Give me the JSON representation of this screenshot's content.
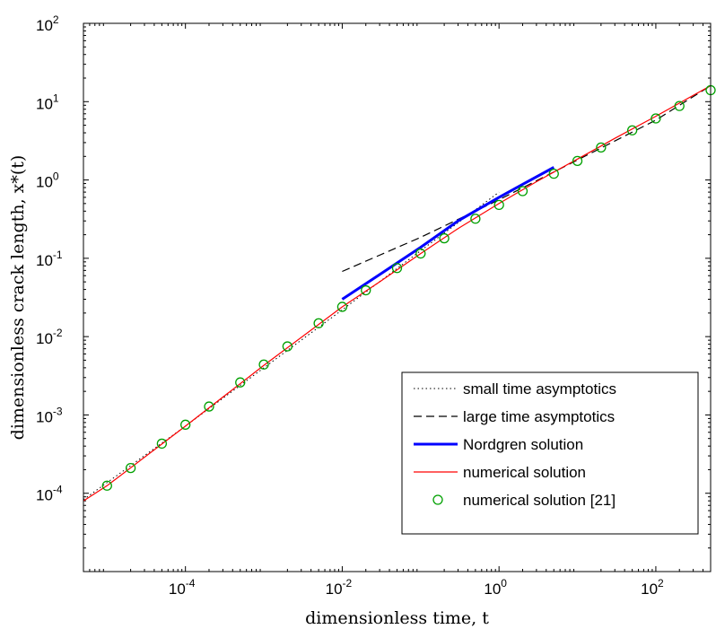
{
  "chart_data": {
    "type": "line",
    "xlabel": "dimensionless time, t",
    "ylabel": "dimensionless crack length, x*(t)",
    "xscale": "log",
    "yscale": "log",
    "xlim": [
      5e-06,
      500
    ],
    "ylim": [
      1e-05,
      100
    ],
    "grid": false,
    "legend_position": "bottom-right",
    "x_ticks": [
      {
        "value": 0.0001,
        "label": "10",
        "exp": "-4"
      },
      {
        "value": 0.01,
        "label": "10",
        "exp": "-2"
      },
      {
        "value": 1,
        "label": "10",
        "exp": "0"
      },
      {
        "value": 100,
        "label": "10",
        "exp": "2"
      }
    ],
    "y_ticks": [
      {
        "value": 0.0001,
        "label": "10",
        "exp": "-4"
      },
      {
        "value": 0.001,
        "label": "10",
        "exp": "-3"
      },
      {
        "value": 0.01,
        "label": "10",
        "exp": "-2"
      },
      {
        "value": 0.1,
        "label": "10",
        "exp": "-1"
      },
      {
        "value": 1,
        "label": "10",
        "exp": "0"
      },
      {
        "value": 10,
        "label": "10",
        "exp": "1"
      },
      {
        "value": 100,
        "label": "10",
        "exp": "2"
      }
    ],
    "series": [
      {
        "name": "small time asymptotics",
        "style": "dotted",
        "color": "#000000",
        "x": [
          5e-06,
          0.0001,
          0.001,
          0.01,
          0.1,
          1.0
        ],
        "y": [
          8.3e-05,
          0.00072,
          0.004,
          0.022,
          0.125,
          0.7
        ]
      },
      {
        "name": "large time asymptotics",
        "style": "dashed",
        "color": "#000000",
        "x": [
          0.01,
          0.1,
          1.0,
          10,
          100,
          500
        ],
        "y": [
          0.068,
          0.185,
          0.56,
          1.8,
          5.8,
          16.0
        ]
      },
      {
        "name": "Nordgren solution",
        "style": "solid-thick",
        "color": "#0000ff",
        "x": [
          0.01,
          0.03,
          0.1,
          0.3,
          1.0,
          2.0,
          5.0
        ],
        "y": [
          0.03,
          0.062,
          0.138,
          0.3,
          0.6,
          0.88,
          1.45
        ]
      },
      {
        "name": "numerical solution",
        "style": "solid",
        "color": "#ff0000",
        "x": [
          5e-06,
          1e-05,
          0.0001,
          0.001,
          0.01,
          0.03,
          0.1,
          0.3,
          1.0,
          3.0,
          10,
          30,
          100,
          500
        ],
        "y": [
          8e-05,
          0.000125,
          0.00072,
          0.0043,
          0.024,
          0.05,
          0.115,
          0.24,
          0.5,
          0.95,
          1.85,
          3.4,
          6.5,
          16.0
        ]
      },
      {
        "name": "numerical solution [21]",
        "style": "markers",
        "color": "#00a000",
        "x": [
          1e-05,
          2e-05,
          5e-05,
          0.0001,
          0.0002,
          0.0005,
          0.001,
          0.002,
          0.005,
          0.01,
          0.02,
          0.05,
          0.1,
          0.2,
          0.5,
          1.0,
          2.0,
          5.0,
          10,
          20,
          50,
          100,
          200,
          500
        ],
        "y": [
          0.000125,
          0.00021,
          0.00043,
          0.00075,
          0.00128,
          0.0026,
          0.0044,
          0.0075,
          0.0148,
          0.024,
          0.039,
          0.075,
          0.115,
          0.18,
          0.32,
          0.48,
          0.72,
          1.2,
          1.75,
          2.6,
          4.3,
          6.1,
          8.8,
          14.0
        ]
      }
    ]
  }
}
